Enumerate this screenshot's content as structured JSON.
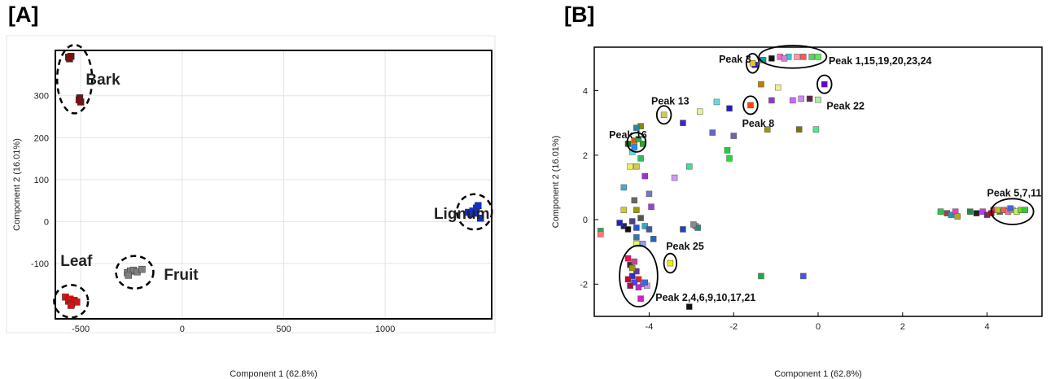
{
  "panels": {
    "a": {
      "label": "[A]"
    },
    "b": {
      "label": "[B]"
    }
  },
  "chart_data": [
    {
      "type": "scatter",
      "title": "",
      "xlabel": "Component 1 (62.8%)",
      "ylabel": "Component 2 (16.01%)",
      "xlim": [
        -625,
        1525
      ],
      "ylim": [
        -232,
        408
      ],
      "xticks": [
        -500,
        0,
        500,
        1000
      ],
      "yticks": [
        -100,
        0,
        100,
        200,
        300
      ],
      "grid": true,
      "groups": [
        {
          "name": "Bark",
          "color": "#7a1010",
          "points": [
            [
              -560,
              392
            ],
            [
              -548,
              394
            ],
            [
              -555,
              388
            ],
            [
              -505,
              295
            ],
            [
              -500,
              285
            ],
            [
              -508,
              290
            ]
          ]
        },
        {
          "name": "Leaf",
          "color": "#e01010",
          "points": [
            [
              -575,
              -180
            ],
            [
              -560,
              -190
            ],
            [
              -552,
              -185
            ],
            [
              -545,
              -196
            ],
            [
              -532,
              -188
            ],
            [
              -520,
              -192
            ],
            [
              -548,
              -200
            ]
          ]
        },
        {
          "name": "Fruit",
          "color": "#7f7f7f",
          "points": [
            [
              -270,
              -122
            ],
            [
              -255,
              -118
            ],
            [
              -240,
              -116
            ],
            [
              -222,
              -120
            ],
            [
              -198,
              -114
            ],
            [
              -265,
              -128
            ]
          ]
        },
        {
          "name": "Lignum",
          "color": "#1030d0",
          "points": [
            [
              1410,
              22
            ],
            [
              1425,
              18
            ],
            [
              1440,
              20
            ],
            [
              1450,
              32
            ],
            [
              1458,
              38
            ],
            [
              1470,
              8
            ],
            [
              1432,
              25
            ]
          ]
        }
      ],
      "annotations": [
        {
          "text": "Bark",
          "x": -475,
          "y": 340
        },
        {
          "text": "Leaf",
          "x": -600,
          "y": -92
        },
        {
          "text": "Fruit",
          "x": -90,
          "y": -125
        },
        {
          "text": "Lignum",
          "x": 1240,
          "y": 20
        }
      ]
    },
    {
      "type": "scatter",
      "title": "",
      "xlabel": "Component 1 (62.8%)",
      "ylabel": "Component 2 (16.01%)",
      "xlim": [
        -5.3,
        5.3
      ],
      "ylim": [
        -3.0,
        5.35
      ],
      "xticks": [
        -4,
        -2,
        0,
        2,
        4
      ],
      "yticks": [
        -2,
        0,
        2,
        4
      ],
      "grid": false,
      "points": [
        [
          -1.5,
          4.8,
          "#2020c0"
        ],
        [
          -1.3,
          4.95,
          "#00a0a0"
        ],
        [
          -1.1,
          5.0,
          "#111111"
        ],
        [
          -0.9,
          5.05,
          "#ff66cc"
        ],
        [
          -0.7,
          5.05,
          "#33cccc"
        ],
        [
          -0.5,
          5.05,
          "#ff99aa"
        ],
        [
          -0.35,
          5.05,
          "#ff5555"
        ],
        [
          -0.15,
          5.05,
          "#66cc66"
        ],
        [
          0.0,
          5.05,
          "#55ee55"
        ],
        [
          -0.8,
          5.0,
          "#cc88cc"
        ],
        [
          -1.55,
          4.85,
          "#f0c020"
        ],
        [
          -1.35,
          4.2,
          "#c08000"
        ],
        [
          -0.95,
          4.1,
          "#f0f090"
        ],
        [
          -1.6,
          3.55,
          "#ff4400"
        ],
        [
          -1.1,
          3.7,
          "#9933cc"
        ],
        [
          -0.6,
          3.7,
          "#cc66ff"
        ],
        [
          -0.4,
          3.75,
          "#cc88ff"
        ],
        [
          -0.2,
          3.75,
          "#662244"
        ],
        [
          0.0,
          3.72,
          "#aaeeaa"
        ],
        [
          0.15,
          4.2,
          "#6600cc"
        ],
        [
          -2.1,
          3.45,
          "#2020c0"
        ],
        [
          -2.4,
          3.65,
          "#66dddd"
        ],
        [
          -2.8,
          3.35,
          "#eeee99"
        ],
        [
          -3.2,
          3.0,
          "#4422cc"
        ],
        [
          -3.65,
          3.25,
          "#cccc55"
        ],
        [
          -2.5,
          2.7,
          "#6666cc"
        ],
        [
          -2.0,
          2.6,
          "#6666aa"
        ],
        [
          -1.2,
          2.8,
          "#999900"
        ],
        [
          -0.45,
          2.8,
          "#777700"
        ],
        [
          -0.05,
          2.8,
          "#44ee88"
        ],
        [
          -2.15,
          2.15,
          "#22cc44"
        ],
        [
          -2.1,
          1.9,
          "#22dd33"
        ],
        [
          -3.05,
          1.65,
          "#44dd99"
        ],
        [
          -3.4,
          1.3,
          "#cc99ff"
        ],
        [
          -4.1,
          1.35,
          "#9933cc"
        ],
        [
          -4.3,
          1.65,
          "#cccc55"
        ],
        [
          -4.45,
          1.65,
          "#eeee66"
        ],
        [
          -4.2,
          1.9,
          "#33bb66"
        ],
        [
          -4.4,
          2.1,
          "#66dddd"
        ],
        [
          -4.35,
          2.25,
          "#2288ff"
        ],
        [
          -4.35,
          2.45,
          "#cc6600"
        ],
        [
          -4.25,
          2.5,
          "#33aa55"
        ],
        [
          -4.2,
          2.9,
          "#888800"
        ],
        [
          -4.3,
          2.85,
          "#2288aa"
        ],
        [
          -4.15,
          2.35,
          "#22aa22"
        ],
        [
          -4.5,
          2.35,
          "#226622"
        ],
        [
          -4.6,
          1.0,
          "#44aadd"
        ],
        [
          -4.35,
          0.6,
          "#666666"
        ],
        [
          -4.0,
          0.8,
          "#7777bb"
        ],
        [
          -3.95,
          0.4,
          "#9944cc"
        ],
        [
          -4.3,
          0.3,
          "#999900"
        ],
        [
          -4.6,
          0.3,
          "#cccc33"
        ],
        [
          -4.2,
          0.05,
          "#555555"
        ],
        [
          -4.4,
          -0.05,
          "#444488"
        ],
        [
          -4.6,
          -0.2,
          "#222266"
        ],
        [
          -4.5,
          -0.3,
          "#111111"
        ],
        [
          -4.3,
          -0.25,
          "#2255dd"
        ],
        [
          -4.1,
          -0.2,
          "#33aacc"
        ],
        [
          -4.0,
          -0.3,
          "#4455aa"
        ],
        [
          -4.7,
          -0.1,
          "#2222cc"
        ],
        [
          -5.15,
          -0.35,
          "#22aa66"
        ],
        [
          -5.15,
          -0.45,
          "#ff7777"
        ],
        [
          -4.3,
          -0.55,
          "#3377aa"
        ],
        [
          -3.9,
          -0.6,
          "#2266bb"
        ],
        [
          -4.15,
          -0.75,
          "#9999ff"
        ],
        [
          -4.3,
          -0.75,
          "#eeff55"
        ],
        [
          -3.2,
          -0.3,
          "#2244bb"
        ],
        [
          -2.9,
          -0.2,
          "#cc8899"
        ],
        [
          -2.85,
          -0.25,
          "#228888"
        ],
        [
          -2.95,
          -0.15,
          "#888888"
        ],
        [
          -3.5,
          -1.35,
          "#eeee00"
        ],
        [
          -4.5,
          -1.2,
          "#ee1155"
        ],
        [
          -4.45,
          -1.4,
          "#333333"
        ],
        [
          -4.35,
          -1.3,
          "#cc4488"
        ],
        [
          -4.3,
          -1.6,
          "#6633aa"
        ],
        [
          -4.4,
          -1.75,
          "#2233cc"
        ],
        [
          -4.25,
          -1.85,
          "#ee2222"
        ],
        [
          -4.35,
          -1.95,
          "#4444ff"
        ],
        [
          -4.15,
          -2.0,
          "#9966ff"
        ],
        [
          -4.05,
          -2.05,
          "#cc99dd"
        ],
        [
          -4.25,
          -2.1,
          "#cc22cc"
        ],
        [
          -4.45,
          -2.05,
          "#aa1144"
        ],
        [
          -4.2,
          -2.45,
          "#cc22cc"
        ],
        [
          -4.4,
          -1.5,
          "#999900"
        ],
        [
          -4.5,
          -1.85,
          "#cc0033"
        ],
        [
          -4.1,
          -1.95,
          "#4466dd"
        ],
        [
          -3.05,
          -2.7,
          "#111111"
        ],
        [
          -1.35,
          -1.75,
          "#22aa44"
        ],
        [
          -0.35,
          -1.75,
          "#4455ee"
        ],
        [
          2.9,
          0.25,
          "#22cc44"
        ],
        [
          3.05,
          0.2,
          "#994444"
        ],
        [
          3.15,
          0.15,
          "#2299aa"
        ],
        [
          3.25,
          0.25,
          "#ff33cc"
        ],
        [
          3.3,
          0.1,
          "#aaaa22"
        ],
        [
          3.75,
          0.2,
          "#222222"
        ],
        [
          3.9,
          0.25,
          "#cc33ff"
        ],
        [
          4.0,
          0.15,
          "#663366"
        ],
        [
          4.15,
          0.3,
          "#ff3344"
        ],
        [
          4.3,
          0.25,
          "#338833"
        ],
        [
          4.4,
          0.3,
          "#ee6644"
        ],
        [
          4.5,
          0.25,
          "#ff66aa"
        ],
        [
          4.6,
          0.3,
          "#aadd33"
        ],
        [
          4.7,
          0.25,
          "#ccee55"
        ],
        [
          4.8,
          0.3,
          "#66dd22"
        ],
        [
          4.9,
          0.3,
          "#33cc33"
        ],
        [
          4.55,
          0.35,
          "#4466dd"
        ],
        [
          4.25,
          0.3,
          "#bbbb22"
        ],
        [
          4.1,
          0.2,
          "#cc0022"
        ],
        [
          3.6,
          0.25,
          "#228844"
        ]
      ],
      "annotations": [
        {
          "text": "Peak 3",
          "x": -2.35,
          "y": 5.0
        },
        {
          "text": "Peak 1,15,19,20,23,24",
          "x": 0.25,
          "y": 4.95
        },
        {
          "text": "Peak 22",
          "x": 0.2,
          "y": 3.55
        },
        {
          "text": "Peak 13",
          "x": -3.95,
          "y": 3.7
        },
        {
          "text": "Peak 8",
          "x": -1.8,
          "y": 3.0
        },
        {
          "text": "Peak 16",
          "x": -4.95,
          "y": 2.65
        },
        {
          "text": "Peak 5,7,11",
          "x": 4.0,
          "y": 0.85
        },
        {
          "text": "Peak 25",
          "x": -3.6,
          "y": -0.8
        },
        {
          "text": "Peak 2,4,6,9,10,17,21",
          "x": -3.85,
          "y": -2.4
        }
      ]
    }
  ]
}
